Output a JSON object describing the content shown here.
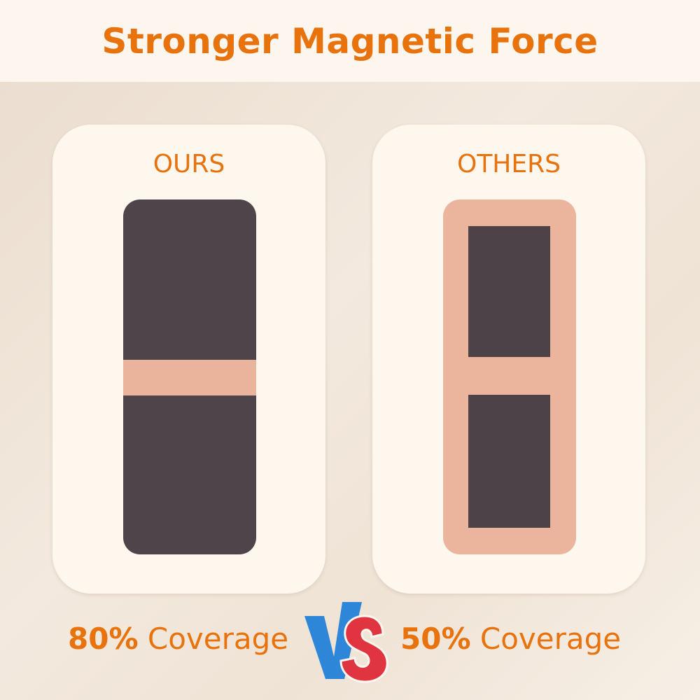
{
  "title": "Stronger Magnetic Force",
  "ours": {
    "label": "OURS",
    "percent": "80%",
    "coverage_label": "Coverage"
  },
  "others": {
    "label": "OTHERS",
    "percent": "50%",
    "coverage_label": "Coverage"
  },
  "vs_logo": "VS",
  "colors": {
    "accent": "#e8720c",
    "vs_blue": "#2e86d9",
    "vs_red": "#e03440",
    "magnet": "#4f4449",
    "tape": "#ebb49c"
  }
}
